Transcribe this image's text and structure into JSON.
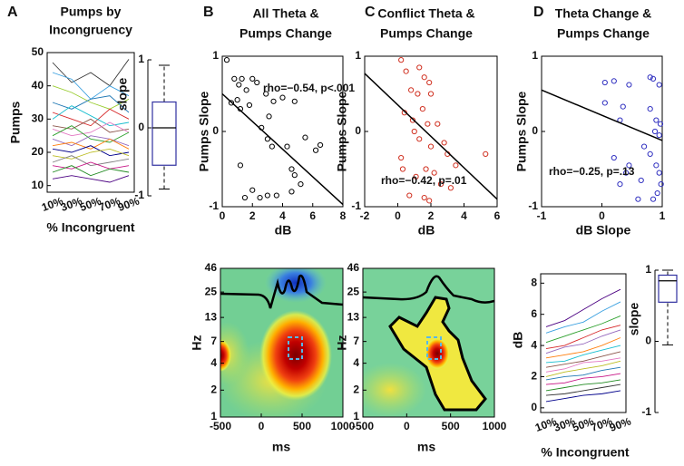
{
  "chart_data": [
    {
      "type": "line",
      "panel": "A",
      "title": [
        "Pumps by",
        "Incongruency"
      ],
      "xlabel": "% Incongruent",
      "ylabel": "Pumps",
      "categories": [
        "10%",
        "30%",
        "50%",
        "70%",
        "90%"
      ],
      "ylim": [
        8,
        50
      ],
      "yticks": [
        10,
        20,
        30,
        40,
        50
      ],
      "series": [
        {
          "color": "#333333",
          "values": [
            47,
            41,
            44,
            40,
            48
          ]
        },
        {
          "color": "#3aa0e0",
          "values": [
            44,
            42,
            36,
            40,
            37
          ]
        },
        {
          "color": "#9acd32",
          "values": [
            40,
            38,
            35,
            33,
            36
          ]
        },
        {
          "color": "#1f77b4",
          "values": [
            35,
            33,
            36,
            37,
            32
          ]
        },
        {
          "color": "#d62728",
          "values": [
            32,
            30,
            28,
            33,
            30
          ]
        },
        {
          "color": "#17becf",
          "values": [
            30,
            34,
            31,
            28,
            29
          ]
        },
        {
          "color": "#8c564b",
          "values": [
            28,
            27,
            30,
            26,
            27
          ]
        },
        {
          "color": "#e377c2",
          "values": [
            27,
            25,
            26,
            29,
            26
          ]
        },
        {
          "color": "#2ca02c",
          "values": [
            25,
            28,
            24,
            23,
            26
          ]
        },
        {
          "color": "#9467bd",
          "values": [
            24,
            22,
            25,
            24,
            22
          ]
        },
        {
          "color": "#ff7f0e",
          "values": [
            22,
            23,
            21,
            24,
            21
          ]
        },
        {
          "color": "#00008b",
          "values": [
            21,
            20,
            22,
            19,
            20
          ]
        },
        {
          "color": "#bcbd22",
          "values": [
            19,
            18,
            20,
            21,
            19
          ]
        },
        {
          "color": "#7f7f7f",
          "values": [
            17,
            19,
            16,
            17,
            18
          ]
        },
        {
          "color": "#c71585",
          "values": [
            16,
            15,
            17,
            15,
            16
          ]
        },
        {
          "color": "#228b22",
          "values": [
            14,
            16,
            13,
            15,
            14
          ]
        },
        {
          "color": "#4b0082",
          "values": [
            12,
            13,
            12,
            11,
            13
          ]
        }
      ]
    },
    {
      "type": "box",
      "ylabel": "slope",
      "ylim": [
        -1,
        1
      ],
      "yticks": [
        -1,
        0,
        1
      ],
      "color": "#3030a0",
      "values": [
        -0.9,
        -0.55,
        0.0,
        0.38,
        0.92
      ]
    },
    {
      "type": "scatter",
      "panel": "B",
      "title": [
        "All Theta &",
        "Pumps Change"
      ],
      "xlabel": "dB",
      "ylabel": "Pumps Slope",
      "annotation": "rho=−0.54, p<.001",
      "color": "#000000",
      "xlim": [
        0,
        8
      ],
      "xticks": [
        0,
        2,
        4,
        6,
        8
      ],
      "ylim": [
        -1,
        1
      ],
      "yticks": [
        -1,
        0,
        1
      ],
      "x": [
        0.3,
        0.8,
        1.1,
        1.3,
        1.6,
        2.0,
        2.3,
        1.0,
        1.8,
        0.6,
        1.2,
        2.9,
        3.4,
        4.0,
        4.8,
        3.1,
        2.6,
        3.0,
        3.3,
        4.3,
        4.6,
        4.8,
        5.5,
        6.2,
        6.5,
        1.2,
        2.0,
        2.5,
        3.0,
        3.6,
        4.6,
        5.2,
        1.5
      ],
      "values": [
        0.95,
        0.7,
        0.62,
        0.7,
        0.55,
        0.7,
        0.65,
        0.42,
        0.35,
        0.38,
        0.3,
        0.5,
        0.4,
        0.45,
        0.4,
        0.2,
        0.05,
        -0.1,
        -0.2,
        -0.2,
        -0.5,
        -0.58,
        -0.08,
        -0.25,
        -0.18,
        -0.45,
        -0.78,
        -0.88,
        -0.85,
        -0.85,
        -0.8,
        -0.7,
        -0.88
      ],
      "fit": {
        "x": [
          0,
          8
        ],
        "values": [
          0.5,
          -0.97
        ]
      }
    },
    {
      "type": "scatter",
      "panel": "C",
      "title": [
        "Conflict Theta &",
        "Pumps Change"
      ],
      "xlabel": "dB",
      "ylabel": "Pumps Slope",
      "annotation": "rho=−0.42, p=.01",
      "color": "#d03020",
      "xlim": [
        -2,
        6
      ],
      "xticks": [
        -2,
        0,
        2,
        4,
        6
      ],
      "ylim": [
        -1,
        1
      ],
      "yticks": [
        -1,
        0,
        1
      ],
      "x": [
        0.2,
        0.5,
        1.3,
        1.6,
        1.9,
        2.0,
        0.8,
        1.2,
        0.4,
        0.9,
        1.5,
        1.8,
        2.4,
        1.0,
        1.3,
        2.0,
        2.8,
        3.0,
        3.5,
        5.3,
        0.3,
        1.1,
        1.7,
        2.2,
        2.6,
        3.2,
        1.6,
        1.9,
        0.7,
        0.2
      ],
      "values": [
        0.95,
        0.8,
        0.85,
        0.72,
        0.65,
        0.5,
        0.55,
        0.5,
        0.25,
        0.15,
        0.3,
        0.1,
        0.1,
        0.0,
        -0.1,
        -0.2,
        -0.15,
        -0.3,
        -0.45,
        -0.3,
        -0.5,
        -0.6,
        -0.5,
        -0.55,
        -0.7,
        -0.75,
        -0.88,
        -0.92,
        -0.85,
        -0.35
      ],
      "fit": {
        "x": [
          -2,
          6
        ],
        "values": [
          0.77,
          -0.9
        ]
      }
    },
    {
      "type": "scatter",
      "panel": "D",
      "title": [
        "Theta Change &",
        "Pumps Change"
      ],
      "xlabel": "dB Slope",
      "ylabel": "Pumps Slope",
      "annotation": "rho=−0.25, p=.13",
      "color": "#3030c0",
      "xlim": [
        -1,
        1
      ],
      "xticks": [
        -1,
        0,
        1
      ],
      "ylim": [
        -1,
        1
      ],
      "yticks": [
        -1,
        0,
        1
      ],
      "x": [
        0.05,
        0.2,
        0.45,
        0.35,
        0.05,
        0.3,
        0.8,
        0.85,
        0.95,
        0.8,
        0.9,
        0.97,
        0.88,
        0.95,
        0.7,
        0.8,
        0.9,
        0.95,
        0.98,
        0.92,
        0.65,
        0.45,
        0.2,
        0.4,
        0.6,
        0.3,
        0.85
      ],
      "values": [
        0.65,
        0.67,
        0.62,
        0.33,
        0.38,
        0.15,
        0.72,
        0.7,
        0.62,
        0.3,
        0.15,
        0.1,
        0.0,
        -0.05,
        -0.2,
        -0.3,
        -0.45,
        -0.55,
        -0.7,
        -0.82,
        -0.65,
        -0.45,
        -0.35,
        -0.55,
        -0.9,
        -0.7,
        -0.9
      ],
      "fit": {
        "x": [
          -1,
          1
        ],
        "values": [
          0.55,
          -0.12
        ]
      }
    },
    {
      "type": "heatmap",
      "xlabel": "ms",
      "ylabel": "Hz",
      "log_scale": true,
      "xlim": [
        -500,
        1000
      ],
      "xticks": [
        -500,
        0,
        500,
        1000
      ],
      "ylim": [
        1,
        46
      ],
      "yticks": [
        1,
        2,
        4,
        7,
        13,
        25,
        46
      ]
    },
    {
      "type": "heatmap",
      "xlabel": "ms",
      "ylabel": "Hz",
      "log_scale": true,
      "xlim": [
        -500,
        1000
      ],
      "xticks": [
        -500,
        0,
        500,
        1000
      ],
      "ylim": [
        1,
        46
      ],
      "yticks": [
        1,
        2,
        4,
        7,
        13,
        25,
        46
      ]
    },
    {
      "type": "line",
      "xlabel": "% Incongruent",
      "ylabel": "dB",
      "categories": [
        "10%",
        "30%",
        "50%",
        "70%",
        "90%"
      ],
      "ylim": [
        -0.3,
        8.6
      ],
      "yticks": [
        0,
        2,
        4,
        6,
        8
      ],
      "series": [
        {
          "color": "#4b0082",
          "values": [
            5.2,
            5.6,
            6.3,
            7.0,
            7.6
          ]
        },
        {
          "color": "#3aa0e0",
          "values": [
            4.8,
            5.2,
            5.5,
            6.2,
            6.8
          ]
        },
        {
          "color": "#2ca02c",
          "values": [
            4.2,
            4.6,
            5.0,
            5.4,
            5.9
          ]
        },
        {
          "color": "#d62728",
          "values": [
            3.8,
            4.0,
            4.5,
            5.0,
            5.3
          ]
        },
        {
          "color": "#9467bd",
          "values": [
            3.5,
            3.9,
            4.1,
            4.6,
            5.0
          ]
        },
        {
          "color": "#ff7f0e",
          "values": [
            3.2,
            3.4,
            3.6,
            4.0,
            4.5
          ]
        },
        {
          "color": "#17becf",
          "values": [
            2.9,
            3.0,
            3.4,
            3.7,
            4.0
          ]
        },
        {
          "color": "#8c564b",
          "values": [
            2.6,
            2.8,
            3.0,
            3.3,
            3.6
          ]
        },
        {
          "color": "#e377c2",
          "values": [
            2.3,
            2.5,
            2.9,
            3.0,
            3.2
          ]
        },
        {
          "color": "#bcbd22",
          "values": [
            2.0,
            2.3,
            2.5,
            2.7,
            3.0
          ]
        },
        {
          "color": "#1f77b4",
          "values": [
            1.8,
            2.0,
            2.1,
            2.4,
            2.6
          ]
        },
        {
          "color": "#c71585",
          "values": [
            1.5,
            1.6,
            1.9,
            2.0,
            2.2
          ]
        },
        {
          "color": "#228b22",
          "values": [
            1.1,
            1.3,
            1.5,
            1.6,
            1.8
          ]
        },
        {
          "color": "#333333",
          "values": [
            0.8,
            0.9,
            1.1,
            1.3,
            1.5
          ]
        },
        {
          "color": "#00008b",
          "values": [
            0.4,
            0.6,
            0.8,
            0.9,
            1.1
          ]
        }
      ]
    },
    {
      "type": "box",
      "ylabel": "slope",
      "ylim": [
        -1,
        1
      ],
      "yticks": [
        -1,
        0,
        1
      ],
      "color": "#3030a0",
      "values": [
        -0.05,
        0.55,
        0.85,
        0.93,
        1.0
      ]
    }
  ]
}
